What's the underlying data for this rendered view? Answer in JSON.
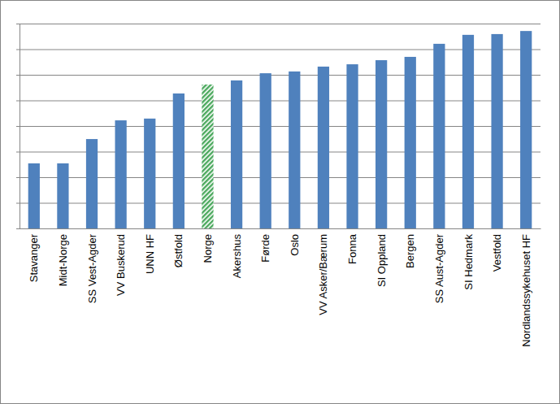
{
  "chart_data": {
    "type": "bar",
    "categories": [
      "Stavanger",
      "Midt-Norge",
      "SS Vest-Agder",
      "VV Buskerud",
      "UNN HF",
      "Østfold",
      "Norge",
      "Akershus",
      "Førde",
      "Oslo",
      "VV Asker/Bærum",
      "Fonna",
      "SI Oppland",
      "Bergen",
      "SS Aust-Agder",
      "SI Hedmark",
      "Vestfold",
      "Nordlandssykehuset HF"
    ],
    "values": [
      2.54,
      2.54,
      3.49,
      4.22,
      4.29,
      5.27,
      5.62,
      5.78,
      6.06,
      6.13,
      6.32,
      6.41,
      6.57,
      6.7,
      7.21,
      7.56,
      7.59,
      7.71
    ],
    "colors": [
      "#4f81bd",
      "#4f81bd",
      "#4f81bd",
      "#4f81bd",
      "#4f81bd",
      "#4f81bd",
      "#4aa85c",
      "#4f81bd",
      "#4f81bd",
      "#4f81bd",
      "#4f81bd",
      "#4f81bd",
      "#4f81bd",
      "#4f81bd",
      "#4f81bd",
      "#4f81bd",
      "#4f81bd",
      "#4f81bd"
    ],
    "ylim": [
      0,
      8
    ],
    "yticks": [
      0,
      1,
      2,
      3,
      4,
      5,
      6,
      7,
      8
    ],
    "grid": true,
    "tick_labels": "x"
  }
}
